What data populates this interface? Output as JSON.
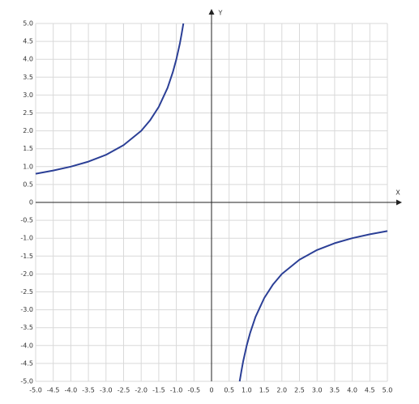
{
  "chart_data": {
    "type": "line",
    "x_label": "X",
    "y_label": "Y",
    "x": [
      -5,
      -4.5,
      -4,
      -3.5,
      -3,
      -2.5,
      -2,
      -1.75,
      -1.5,
      -1.25,
      -1.1,
      -1,
      -0.9,
      -0.85,
      -0.8,
      0,
      0.8,
      0.85,
      0.9,
      1,
      1.1,
      1.25,
      1.5,
      1.75,
      2,
      2.5,
      3,
      3.5,
      4,
      4.5,
      5
    ],
    "series": [
      {
        "color": "#2b3f96",
        "values": [
          0.8,
          0.89,
          1,
          1.14,
          1.33,
          1.6,
          2,
          2.29,
          2.67,
          3.2,
          3.64,
          4,
          4.44,
          4.71,
          5,
          null,
          -5,
          -4.71,
          -4.44,
          -4,
          -3.64,
          -3.2,
          -2.67,
          -2.29,
          -2,
          -1.6,
          -1.33,
          -1.14,
          -1,
          -0.89,
          -0.8
        ]
      }
    ],
    "xlim": [
      -5,
      5
    ],
    "ylim": [
      -5,
      5
    ],
    "xticks": [
      {
        "value": -5,
        "label": "-5.0"
      },
      -4.5,
      {
        "value": -4,
        "label": "-4.0"
      },
      -3.5,
      {
        "value": -3,
        "label": "-3.0"
      },
      -2.5,
      {
        "value": -2,
        "label": "-2.0"
      },
      -1.5,
      {
        "value": -1,
        "label": "-1.0"
      },
      -0.5,
      0,
      0.5,
      {
        "value": 1,
        "label": "1.0"
      },
      1.5,
      {
        "value": 2,
        "label": "2.0"
      },
      2.5,
      {
        "value": 3,
        "label": "3.0"
      },
      3.5,
      {
        "value": 4,
        "label": "4.0"
      },
      4.5,
      {
        "value": 5,
        "label": "5.0"
      }
    ],
    "yticks": [
      {
        "value": -5,
        "label": "-5.0"
      },
      -4.5,
      {
        "value": -4,
        "label": "-4.0"
      },
      -3.5,
      {
        "value": -3,
        "label": "-3.0"
      },
      -2.5,
      {
        "value": -2,
        "label": "-2.0"
      },
      -1.5,
      {
        "value": -1,
        "label": "-1.0"
      },
      -0.5,
      0,
      0.5,
      {
        "value": 1,
        "label": "1.0"
      },
      1.5,
      {
        "value": 2,
        "label": "2.0"
      },
      2.5,
      {
        "value": 3,
        "label": "3.0"
      },
      3.5,
      {
        "value": 4,
        "label": "4.0"
      },
      4.5,
      {
        "value": 5,
        "label": "5.0"
      }
    ],
    "grid": true
  }
}
